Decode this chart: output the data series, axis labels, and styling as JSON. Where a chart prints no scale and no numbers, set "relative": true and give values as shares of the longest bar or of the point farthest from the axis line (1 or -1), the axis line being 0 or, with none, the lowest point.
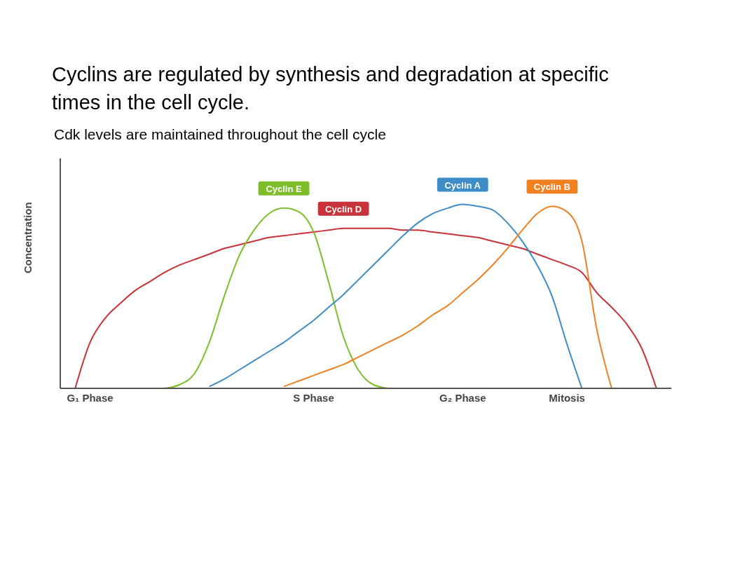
{
  "chart_data": {
    "type": "line",
    "title": "Cyclins are regulated by synthesis and degradation at specific times in the cell cycle.",
    "subtitle": "Cdk levels are maintained throughout the cell cycle",
    "ylabel": "Concentration",
    "relative": true,
    "categories": [
      null,
      null,
      "G₁ Phase",
      null,
      null,
      null,
      null,
      null,
      null,
      null,
      null,
      null,
      null,
      null,
      null,
      null,
      null,
      "S Phase",
      null,
      null,
      null,
      null,
      null,
      null,
      null,
      null,
      null,
      "G₂ Phase",
      null,
      null,
      null,
      null,
      null,
      null,
      "Mitosis",
      null,
      null,
      null,
      null,
      null,
      null,
      null
    ],
    "series": [
      {
        "name": "Cyclin D",
        "color": "#c8323a",
        "values": [
          null,
          0,
          0.25,
          0.38,
          0.46,
          0.53,
          0.58,
          0.63,
          0.67,
          0.7,
          0.73,
          0.76,
          0.78,
          0.8,
          0.82,
          0.83,
          0.84,
          0.85,
          0.86,
          0.87,
          0.87,
          0.87,
          0.87,
          0.86,
          0.86,
          0.85,
          0.84,
          0.83,
          0.82,
          0.8,
          0.78,
          0.76,
          0.73,
          0.7,
          0.67,
          0.63,
          0.52,
          0.44,
          0.35,
          0.22,
          0,
          null
        ]
      },
      {
        "name": "Cyclin E",
        "color": "#7dbd2a",
        "values": [
          null,
          null,
          null,
          null,
          null,
          null,
          null,
          0,
          0.02,
          0.08,
          0.25,
          0.5,
          0.72,
          0.86,
          0.95,
          0.98,
          0.96,
          0.85,
          0.58,
          0.28,
          0.1,
          0.02,
          0,
          null,
          null,
          null,
          null,
          null,
          null,
          null,
          null,
          null,
          null,
          null,
          null,
          null,
          null,
          null,
          null,
          null,
          null,
          null
        ]
      },
      {
        "name": "Cyclin A",
        "color": "#3c8dc8",
        "values": [
          null,
          null,
          null,
          null,
          null,
          null,
          null,
          null,
          null,
          null,
          0.01,
          0.05,
          0.1,
          0.15,
          0.2,
          0.25,
          0.31,
          0.37,
          0.44,
          0.51,
          0.59,
          0.67,
          0.75,
          0.83,
          0.9,
          0.95,
          0.98,
          1,
          0.99,
          0.97,
          0.9,
          0.8,
          0.67,
          0.5,
          0.24,
          0,
          null,
          null,
          null,
          null,
          null,
          null
        ]
      },
      {
        "name": "Cyclin B",
        "color": "#f08020",
        "values": [
          null,
          null,
          null,
          null,
          null,
          null,
          null,
          null,
          null,
          null,
          null,
          null,
          null,
          null,
          null,
          0.01,
          0.04,
          0.07,
          0.1,
          0.13,
          0.17,
          0.21,
          0.25,
          0.29,
          0.34,
          0.4,
          0.45,
          0.52,
          0.59,
          0.67,
          0.76,
          0.86,
          0.95,
          0.99,
          0.96,
          0.8,
          0.32,
          0,
          null,
          null,
          null,
          null
        ]
      }
    ]
  }
}
